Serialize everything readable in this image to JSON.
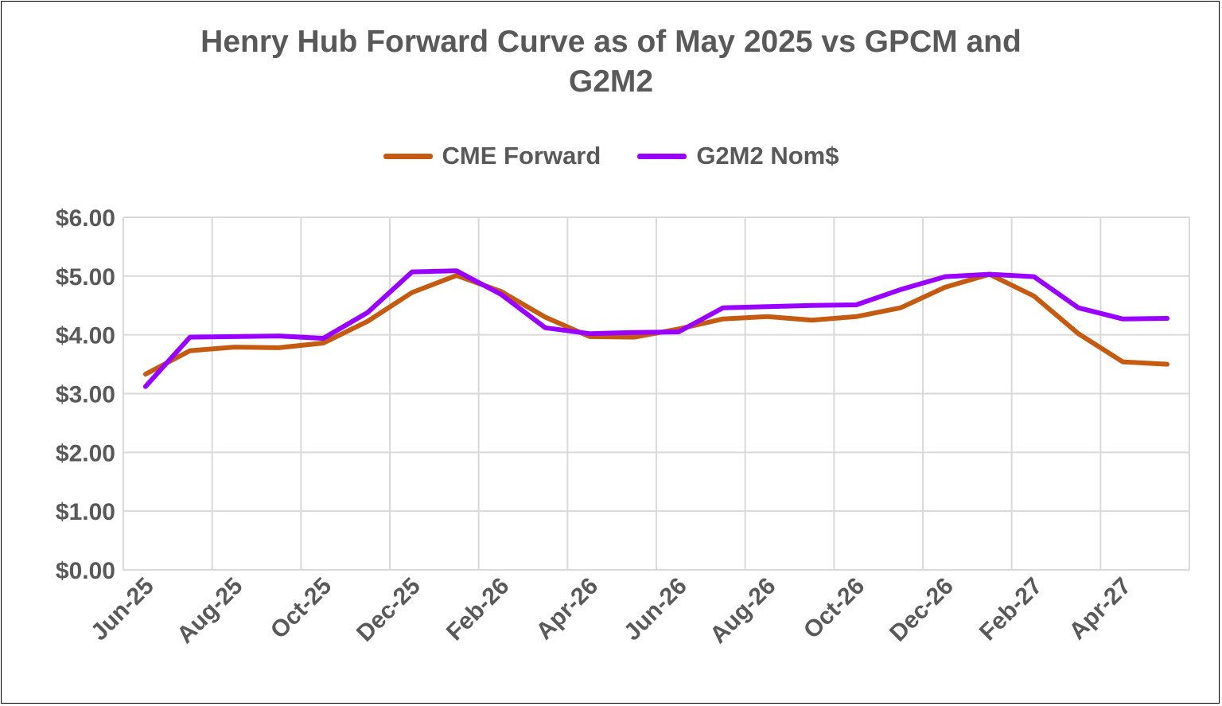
{
  "chart_data": {
    "type": "line",
    "title_lines": [
      "Henry Hub Forward Curve as of May 2025 vs GPCM and",
      "G2M2"
    ],
    "xlabel": "",
    "ylabel": "",
    "ylim": [
      0,
      6
    ],
    "yticks": [
      "$0.00",
      "$1.00",
      "$2.00",
      "$3.00",
      "$4.00",
      "$5.00",
      "$6.00"
    ],
    "grid": true,
    "legend_position": "top",
    "x": [
      "Jun-25",
      "Jul-25",
      "Aug-25",
      "Sep-25",
      "Oct-25",
      "Nov-25",
      "Dec-25",
      "Jan-26",
      "Feb-26",
      "Mar-26",
      "Apr-26",
      "May-26",
      "Jun-26",
      "Jul-26",
      "Aug-26",
      "Sep-26",
      "Oct-26",
      "Nov-26",
      "Dec-26",
      "Jan-27",
      "Feb-27",
      "Mar-27",
      "Apr-27",
      "May-27"
    ],
    "xtick_labels": [
      "Jun-25",
      "Aug-25",
      "Oct-25",
      "Dec-25",
      "Feb-26",
      "Apr-26",
      "Jun-26",
      "Aug-26",
      "Oct-26",
      "Dec-26",
      "Feb-27",
      "Apr-27"
    ],
    "series": [
      {
        "name": "CME Forward",
        "color": "#C55A11",
        "values": [
          3.33,
          3.73,
          3.79,
          3.78,
          3.86,
          4.23,
          4.72,
          5.01,
          4.74,
          4.3,
          3.97,
          3.96,
          4.1,
          4.27,
          4.31,
          4.25,
          4.31,
          4.46,
          4.81,
          5.03,
          4.66,
          4.02,
          3.54,
          3.5
        ]
      },
      {
        "name": "G2M2 Nom$",
        "color": "#9900FF",
        "values": [
          3.12,
          3.96,
          3.97,
          3.98,
          3.94,
          4.38,
          5.07,
          5.09,
          4.69,
          4.12,
          4.02,
          4.04,
          4.05,
          4.46,
          4.48,
          4.5,
          4.51,
          4.77,
          4.99,
          5.03,
          4.99,
          4.46,
          4.27,
          4.28
        ]
      }
    ]
  }
}
